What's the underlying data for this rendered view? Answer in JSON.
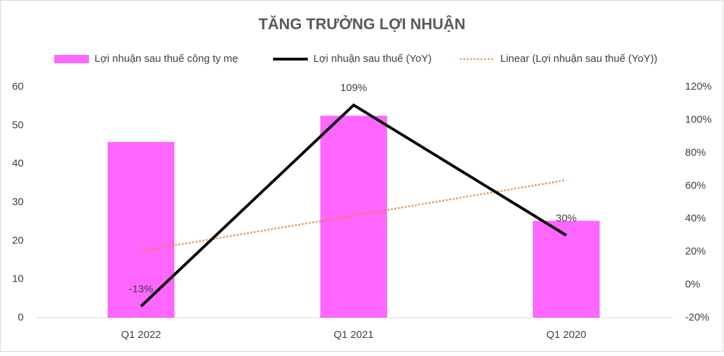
{
  "chart_data": {
    "type": "combo",
    "title": "TĂNG TRƯỞNG LỢI NHUẬN",
    "categories": [
      "Q1 2022",
      "Q1 2021",
      "Q1 2020"
    ],
    "series": [
      {
        "name": "Lợi nhuận sau thuế công ty mẹ",
        "type": "bar",
        "color": "#ff66ff",
        "axis": "y",
        "values": [
          45.7,
          52.5,
          25.2
        ]
      },
      {
        "name": "Lợi nhuận sau thuế (YoY)",
        "type": "line",
        "color": "#000000",
        "axis": "y2",
        "values": [
          -13,
          109,
          30
        ],
        "value_labels": [
          "-13%",
          "109%",
          "30%"
        ]
      },
      {
        "name": "Linear (Lợi nhuận sau thuế (YoY))",
        "type": "line",
        "style": "dotted",
        "color": "#ed7d31",
        "axis": "y2",
        "values": [
          20.5,
          42,
          63.5
        ]
      }
    ],
    "ylim": [
      0,
      60
    ],
    "yticks": [
      0,
      10,
      20,
      30,
      40,
      50,
      60
    ],
    "y2lim": [
      -20,
      120
    ],
    "y2ticks": [
      {
        "value": -20,
        "label": "-20%"
      },
      {
        "value": 0,
        "label": "0%"
      },
      {
        "value": 20,
        "label": "20%"
      },
      {
        "value": 40,
        "label": "40%"
      },
      {
        "value": 60,
        "label": "60%"
      },
      {
        "value": 80,
        "label": "80%"
      },
      {
        "value": 100,
        "label": "100%"
      },
      {
        "value": 120,
        "label": "120%"
      }
    ],
    "legend": "top"
  }
}
